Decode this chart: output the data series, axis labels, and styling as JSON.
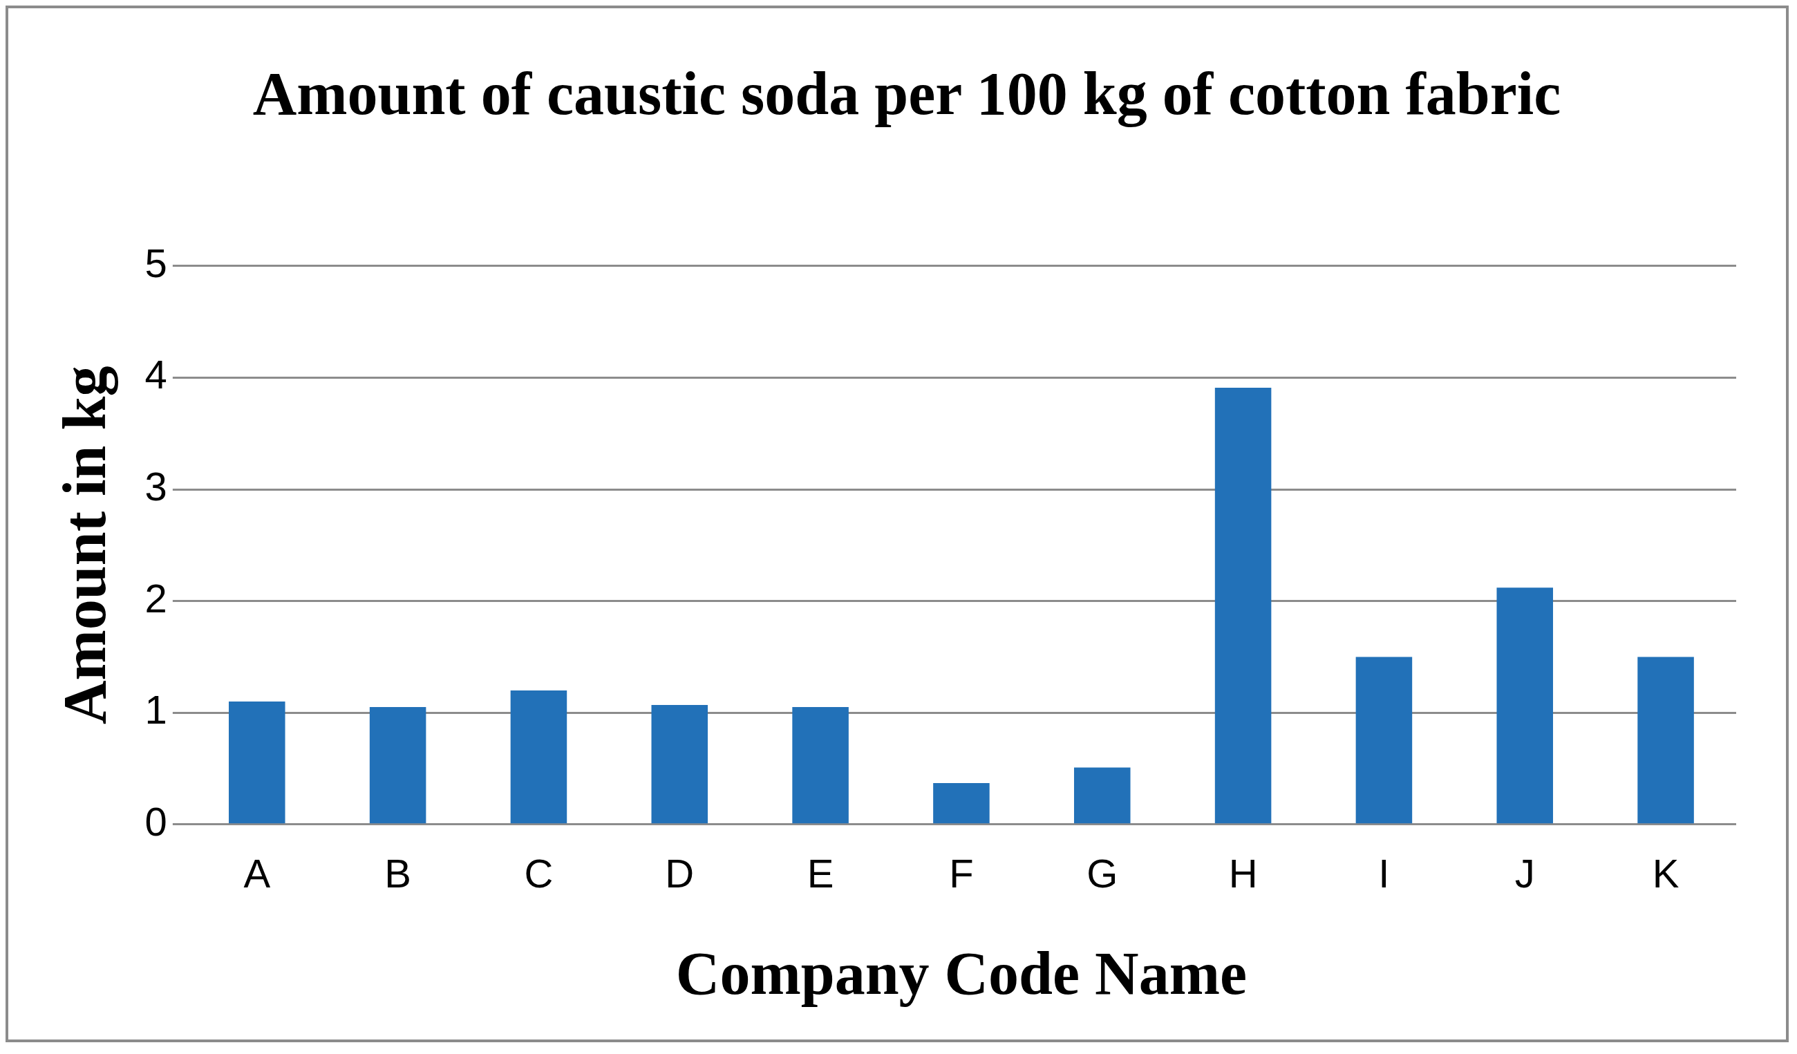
{
  "chart_data": {
    "type": "bar",
    "title": "Amount of caustic soda per 100 kg of cotton fabric",
    "xlabel": "Company Code Name",
    "ylabel": "Amount in kg",
    "categories": [
      "A",
      "B",
      "C",
      "D",
      "E",
      "F",
      "G",
      "H",
      "I",
      "J",
      "K"
    ],
    "values": [
      1.1,
      1.05,
      1.2,
      1.07,
      1.05,
      0.37,
      0.51,
      3.91,
      1.5,
      2.12,
      1.5
    ],
    "color": "#2271b8",
    "ylim": [
      0,
      5
    ],
    "yticks": [
      0,
      1,
      2,
      3,
      4,
      5
    ],
    "grid": "y",
    "legend": false
  }
}
